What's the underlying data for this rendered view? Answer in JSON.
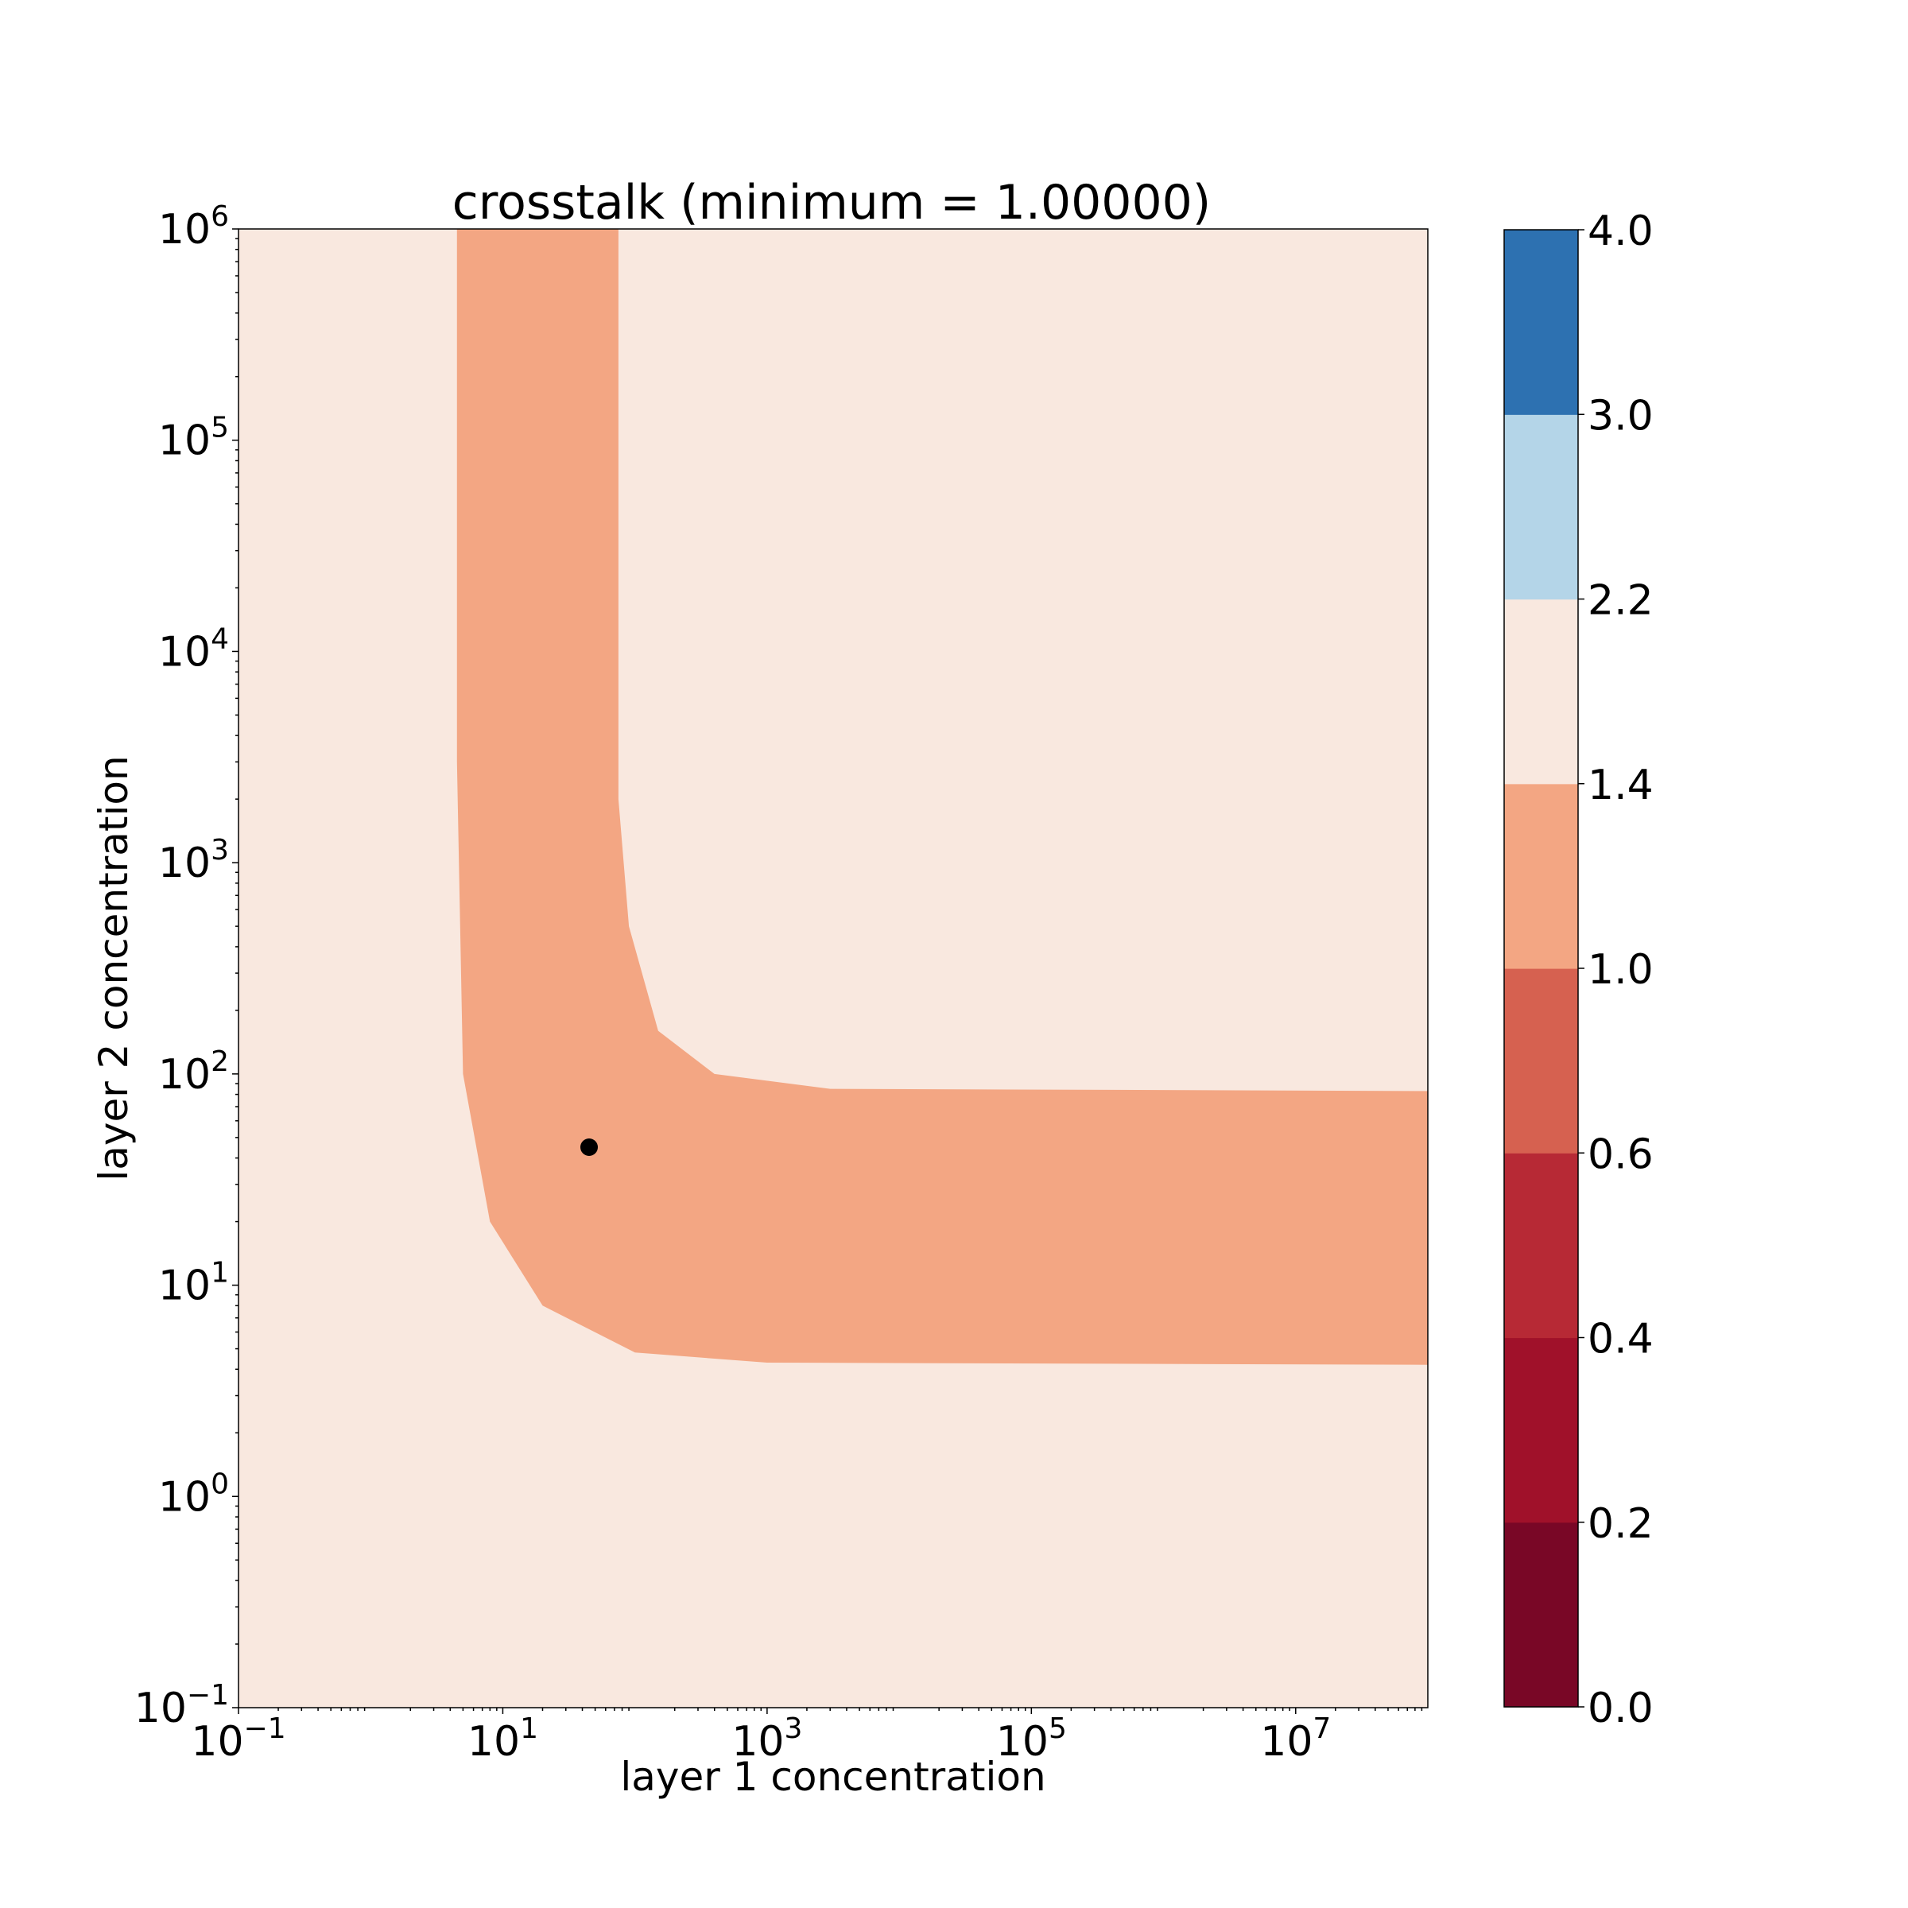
{
  "chart_data": {
    "type": "heatmap",
    "title": "crosstalk (minimum = 1.00000)",
    "xlabel": "layer 1 concentration",
    "ylabel": "layer 2 concentration",
    "xscale": "log",
    "yscale": "log",
    "xlim": [
      0.1,
      100000000
    ],
    "ylim": [
      0.1,
      1000000
    ],
    "x_ticks": [
      {
        "base": "10",
        "exp": "−1",
        "value": 0.1
      },
      {
        "base": "10",
        "exp": "1",
        "value": 10
      },
      {
        "base": "10",
        "exp": "3",
        "value": 1000
      },
      {
        "base": "10",
        "exp": "5",
        "value": 100000
      },
      {
        "base": "10",
        "exp": "7",
        "value": 10000000
      }
    ],
    "y_ticks": [
      {
        "base": "10",
        "exp": "−1",
        "value": 0.1
      },
      {
        "base": "10",
        "exp": "0",
        "value": 1
      },
      {
        "base": "10",
        "exp": "1",
        "value": 10
      },
      {
        "base": "10",
        "exp": "2",
        "value": 100
      },
      {
        "base": "10",
        "exp": "3",
        "value": 1000
      },
      {
        "base": "10",
        "exp": "4",
        "value": 10000
      },
      {
        "base": "10",
        "exp": "5",
        "value": 100000
      },
      {
        "base": "10",
        "exp": "6",
        "value": 1000000
      }
    ],
    "background_band": {
      "range": [
        1.4,
        2.2
      ],
      "color": "#f9e8df"
    },
    "region_band": {
      "range": [
        1.0,
        1.4
      ],
      "color": "#f3a683",
      "description_points": {
        "inner_boundary": [
          [
            4.5,
            1000000
          ],
          [
            4.5,
            3000
          ],
          [
            5,
            100
          ],
          [
            8,
            20
          ],
          [
            20,
            8
          ],
          [
            100,
            4.8
          ],
          [
            1000,
            4.3
          ],
          [
            100000000,
            4.2
          ]
        ],
        "outer_boundary": [
          [
            75,
            1000000
          ],
          [
            75,
            2000
          ],
          [
            90,
            500
          ],
          [
            150,
            160
          ],
          [
            400,
            100
          ],
          [
            3000,
            85
          ],
          [
            100000000,
            83
          ]
        ]
      }
    },
    "marker": {
      "x": 45,
      "y": 45,
      "color": "#000000"
    },
    "colorbar": {
      "levels": [
        0.0,
        0.2,
        0.4,
        0.6,
        1.0,
        1.4,
        2.2,
        3.0,
        4.0
      ],
      "tick_labels": [
        "0.0",
        "0.2",
        "0.4",
        "0.6",
        "1.0",
        "1.4",
        "2.2",
        "3.0",
        "4.0"
      ],
      "colors": [
        "#790726",
        "#a0112a",
        "#b72935",
        "#d66150",
        "#f3a683",
        "#f9e8df",
        "#b4d5e8",
        "#2d71b1"
      ]
    }
  }
}
